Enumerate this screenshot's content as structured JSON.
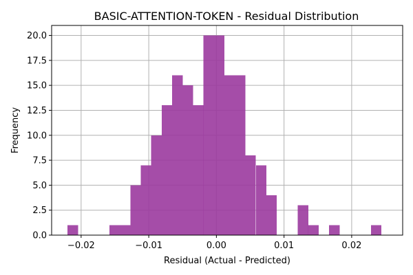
{
  "chart_data": {
    "type": "bar",
    "title": "BASIC-ATTENTION-TOKEN - Residual Distribution",
    "xlabel": "Residual (Actual - Predicted)",
    "ylabel": "Frequency",
    "bar_color": "#9b3a9e",
    "grid": true,
    "bin_width": 0.0015473,
    "xlim": [
      -0.02436,
      0.02754
    ],
    "ylim": [
      0,
      21
    ],
    "x_ticks": [
      {
        "value": -0.02,
        "label": "−0.02"
      },
      {
        "value": -0.01,
        "label": "−0.01"
      },
      {
        "value": 0.0,
        "label": "0.00"
      },
      {
        "value": 0.01,
        "label": "0.01"
      },
      {
        "value": 0.02,
        "label": "0.02"
      }
    ],
    "y_ticks": [
      {
        "value": 0,
        "label": "0.0"
      },
      {
        "value": 2.5,
        "label": "2.5"
      },
      {
        "value": 5,
        "label": "5.0"
      },
      {
        "value": 7.5,
        "label": "7.5"
      },
      {
        "value": 10,
        "label": "10.0"
      },
      {
        "value": 12.5,
        "label": "12.5"
      },
      {
        "value": 15,
        "label": "15.0"
      },
      {
        "value": 17.5,
        "label": "17.5"
      },
      {
        "value": 20,
        "label": "20.0"
      }
    ],
    "bins": [
      {
        "x0": -0.02201,
        "count": 1
      },
      {
        "x0": -0.02046,
        "count": 0
      },
      {
        "x0": -0.01892,
        "count": 0
      },
      {
        "x0": -0.01737,
        "count": 0
      },
      {
        "x0": -0.01582,
        "count": 1
      },
      {
        "x0": -0.01427,
        "count": 1
      },
      {
        "x0": -0.01273,
        "count": 5
      },
      {
        "x0": -0.01118,
        "count": 7
      },
      {
        "x0": -0.00963,
        "count": 10
      },
      {
        "x0": -0.00809,
        "count": 13
      },
      {
        "x0": -0.00654,
        "count": 16
      },
      {
        "x0": -0.00499,
        "count": 15
      },
      {
        "x0": -0.00344,
        "count": 13
      },
      {
        "x0": -0.0019,
        "count": 20
      },
      {
        "x0": -0.00035,
        "count": 20
      },
      {
        "x0": 0.0012,
        "count": 16
      },
      {
        "x0": 0.00274,
        "count": 16
      },
      {
        "x0": 0.00429,
        "count": 8
      },
      {
        "x0": 0.00584,
        "count": 7
      },
      {
        "x0": 0.00739,
        "count": 4
      },
      {
        "x0": 0.00893,
        "count": 0
      },
      {
        "x0": 0.01048,
        "count": 0
      },
      {
        "x0": 0.01203,
        "count": 3
      },
      {
        "x0": 0.01357,
        "count": 1
      },
      {
        "x0": 0.01512,
        "count": 0
      },
      {
        "x0": 0.01667,
        "count": 1
      },
      {
        "x0": 0.01822,
        "count": 0
      },
      {
        "x0": 0.01976,
        "count": 0
      },
      {
        "x0": 0.02131,
        "count": 0
      },
      {
        "x0": 0.02286,
        "count": 1
      }
    ]
  }
}
